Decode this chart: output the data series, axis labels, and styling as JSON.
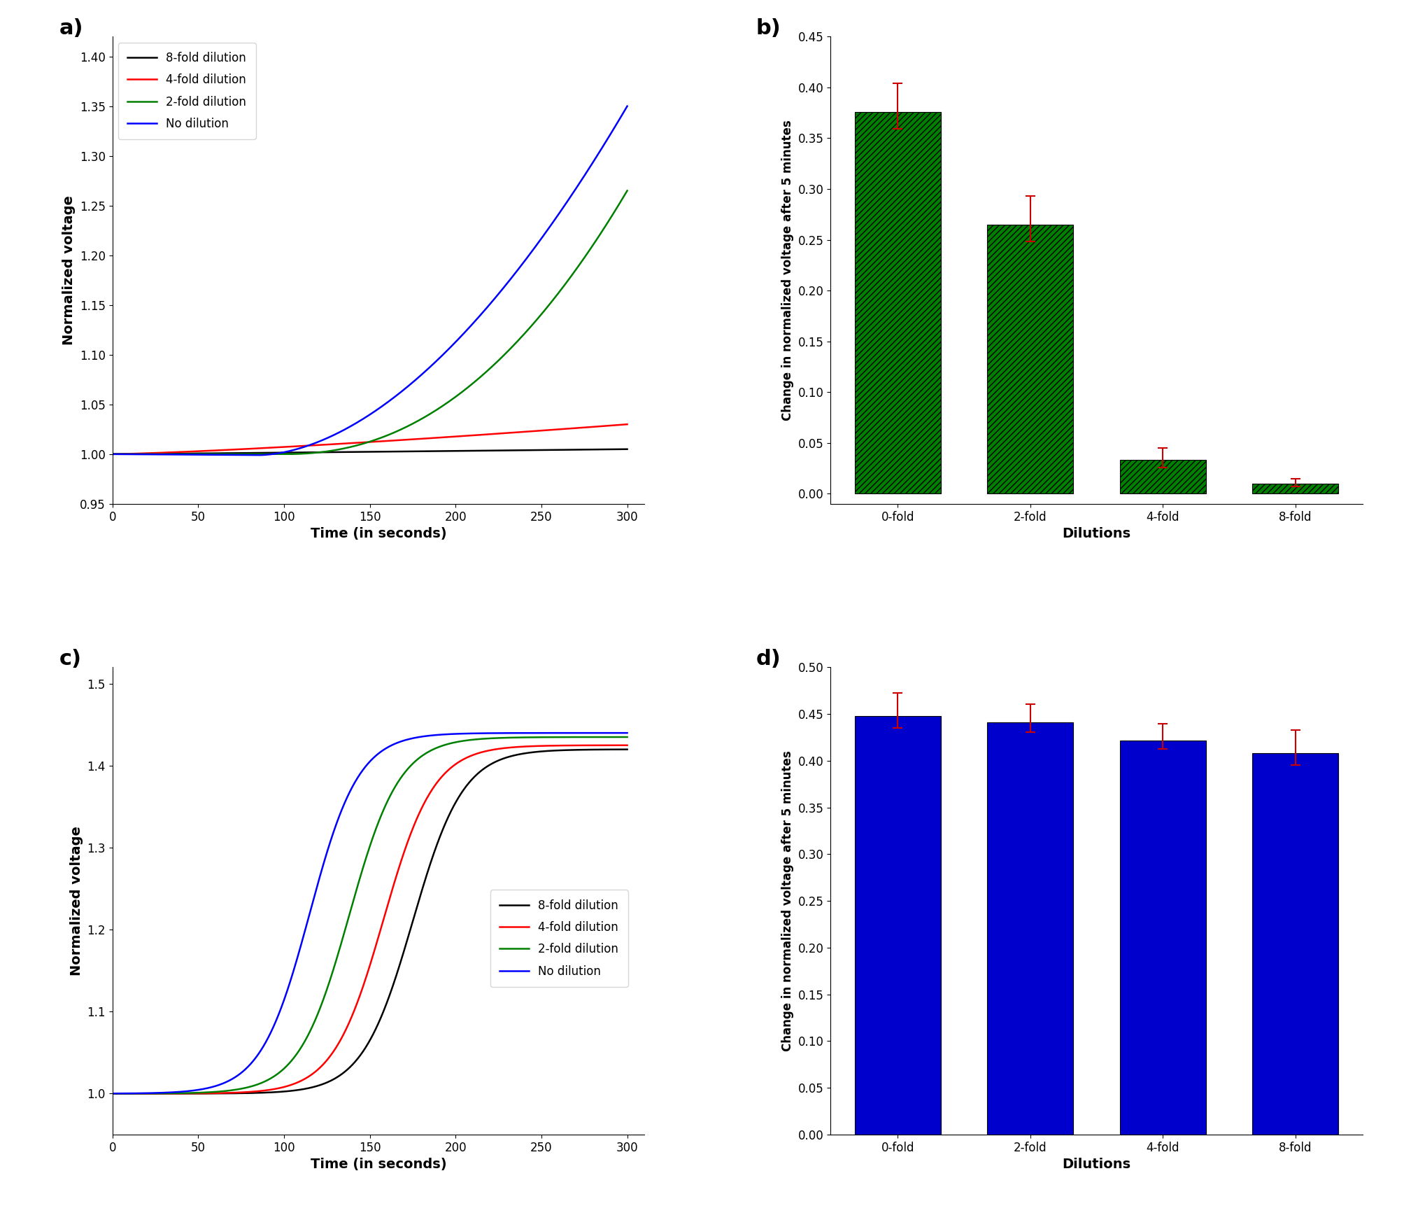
{
  "panel_labels": [
    "a)",
    "b)",
    "c)",
    "d)"
  ],
  "line_colors": [
    "black",
    "red",
    "green",
    "blue"
  ],
  "line_labels": [
    "8-fold dilution",
    "4-fold dilution",
    "2-fold dilution",
    "No dilution"
  ],
  "panel_a": {
    "xlim": [
      0,
      310
    ],
    "ylim": [
      0.95,
      1.42
    ],
    "yticks": [
      0.95,
      1.0,
      1.05,
      1.1,
      1.15,
      1.2,
      1.25,
      1.3,
      1.35,
      1.4
    ],
    "xticks": [
      0,
      50,
      100,
      150,
      200,
      250,
      300
    ],
    "xlabel": "Time (in seconds)",
    "ylabel": "Normalized voltage"
  },
  "panel_b": {
    "bar_values": [
      0.376,
      0.265,
      0.033,
      0.01
    ],
    "bar_errors": [
      0.028,
      0.028,
      0.012,
      0.005
    ],
    "bar_categories": [
      "0-fold",
      "2-fold",
      "4-fold",
      "8-fold"
    ],
    "bar_color": "#008000",
    "error_color": "#cc0000",
    "ylim": [
      -0.01,
      0.45
    ],
    "yticks": [
      0.0,
      0.05,
      0.1,
      0.15,
      0.2,
      0.25,
      0.3,
      0.35,
      0.4,
      0.45
    ],
    "xlabel": "Dilutions",
    "ylabel": "Change in normalized voltage after 5 minutes"
  },
  "panel_c": {
    "xlim": [
      0,
      310
    ],
    "ylim": [
      0.95,
      1.52
    ],
    "yticks": [
      1.0,
      1.1,
      1.2,
      1.3,
      1.4,
      1.5
    ],
    "xticks": [
      0,
      50,
      100,
      150,
      200,
      250,
      300
    ],
    "xlabel": "Time (in seconds)",
    "ylabel": "Normalized voltage"
  },
  "panel_d": {
    "bar_values": [
      0.448,
      0.441,
      0.422,
      0.408
    ],
    "bar_errors": [
      0.025,
      0.02,
      0.018,
      0.025
    ],
    "bar_categories": [
      "0-fold",
      "2-fold",
      "4-fold",
      "8-fold"
    ],
    "bar_color": "#0000cc",
    "error_color": "#cc0000",
    "ylim": [
      0.0,
      0.5
    ],
    "yticks": [
      0.0,
      0.05,
      0.1,
      0.15,
      0.2,
      0.25,
      0.3,
      0.35,
      0.4,
      0.45,
      0.5
    ],
    "xlabel": "Dilutions",
    "ylabel": "Change in normalized voltage after 5 minutes"
  }
}
